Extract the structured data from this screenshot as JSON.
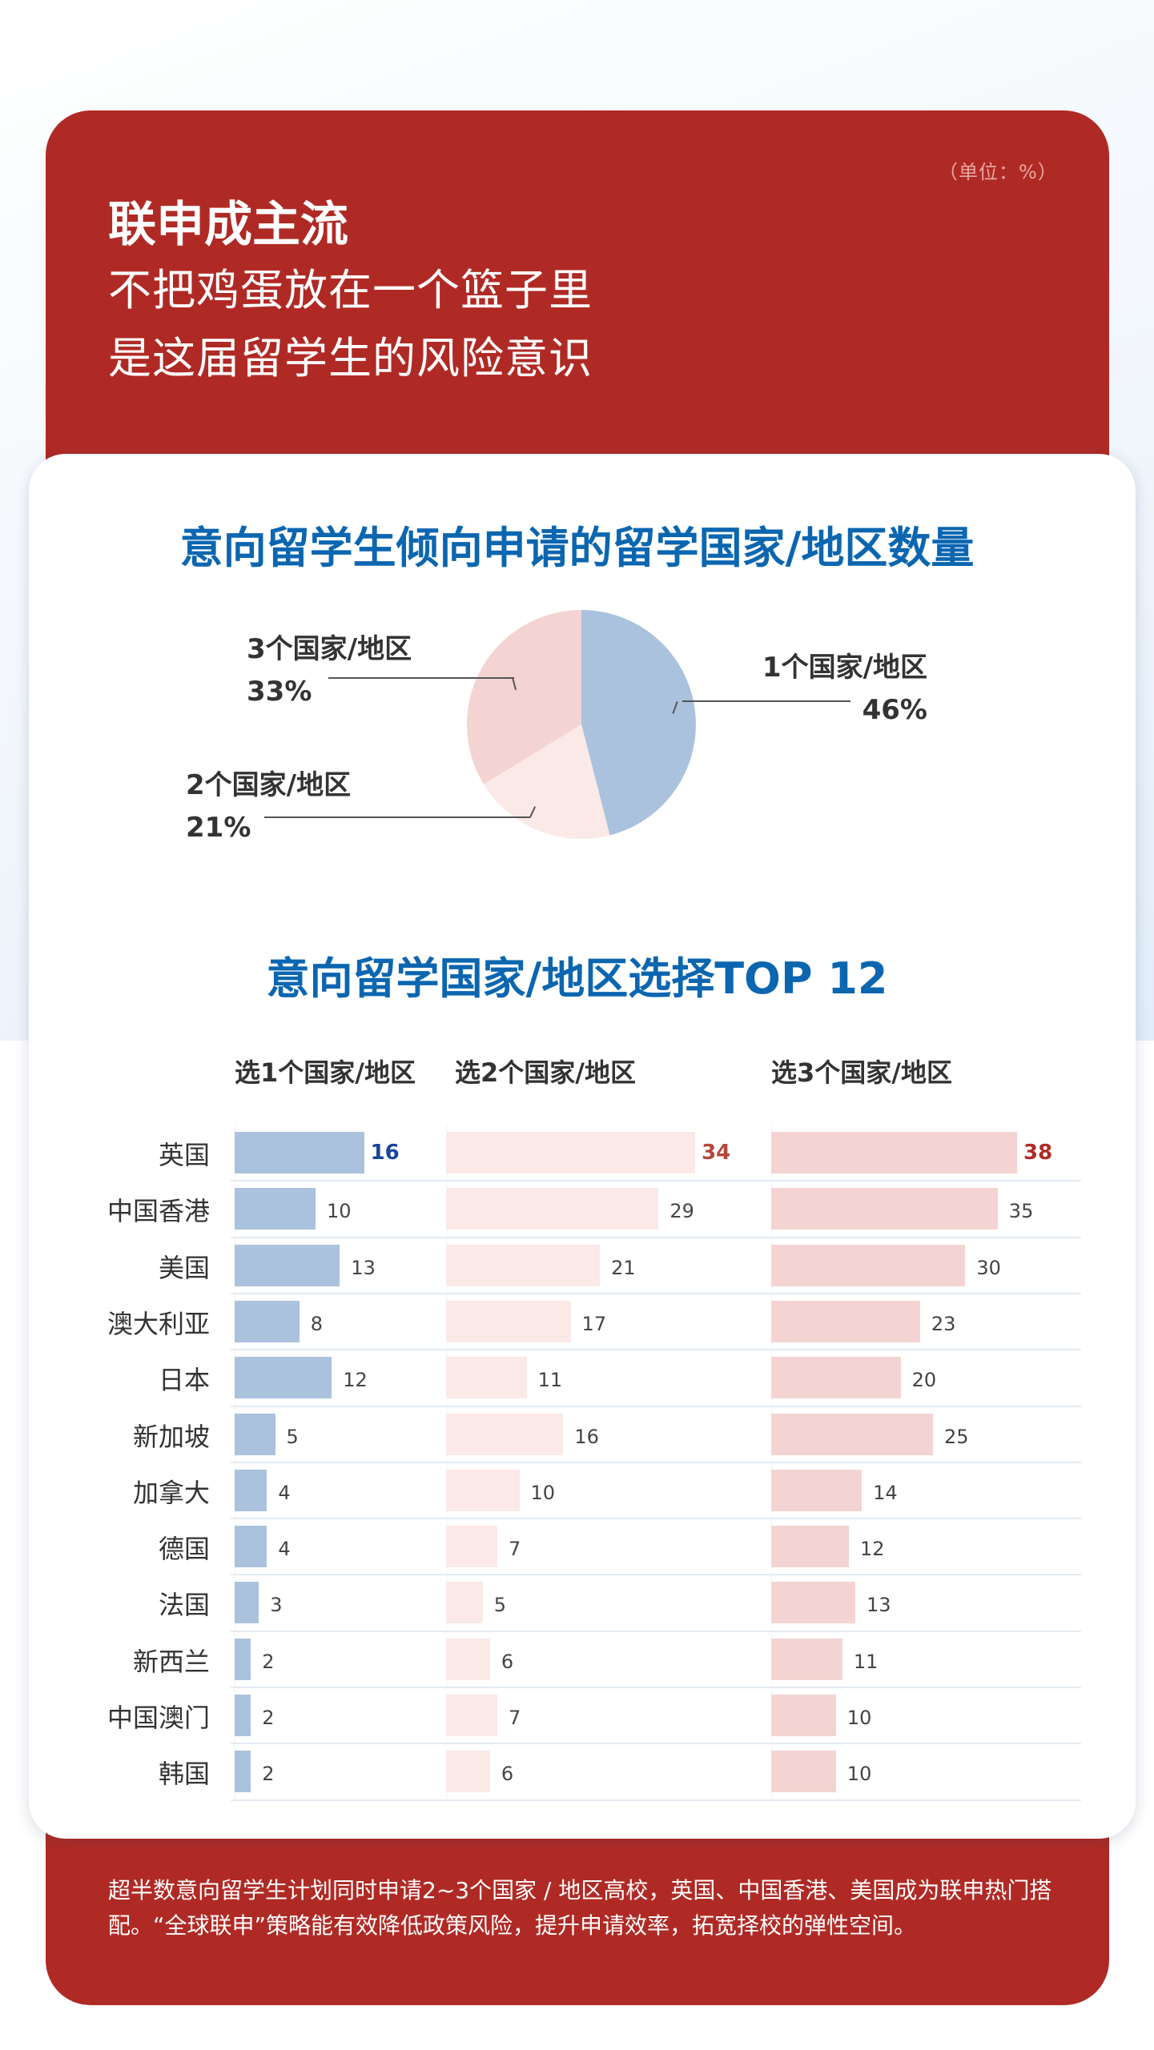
{
  "header": {
    "unit": "（单位：%）",
    "title": "联申成主流",
    "subtitle_line1": "不把鸡蛋放在一个篮子里",
    "subtitle_line2": "是这届留学生的风险意识"
  },
  "colors": {
    "brand_red": "#b02a25",
    "title_blue": "#0b66b0",
    "bar_one": "#aac2dd",
    "bar_two": "#fae9e7",
    "bar_three": "#f4d4d2"
  },
  "pie": {
    "title": "意向留学生倾向申请的留学国家/地区数量",
    "slices": [
      {
        "label": "1个国家/地区",
        "pct": "46%"
      },
      {
        "label": "2个国家/地区",
        "pct": "21%"
      },
      {
        "label": "3个国家/地区",
        "pct": "33%"
      }
    ]
  },
  "bars": {
    "title": "意向留学国家/地区选择TOP 12",
    "columns": [
      "选1个国家/地区",
      "选2个国家/地区",
      "选3个国家/地区"
    ],
    "rows": [
      {
        "name": "英国",
        "v": [
          "16",
          "34",
          "38"
        ]
      },
      {
        "name": "中国香港",
        "v": [
          "10",
          "29",
          "35"
        ]
      },
      {
        "name": "美国",
        "v": [
          "13",
          "21",
          "30"
        ]
      },
      {
        "name": "澳大利亚",
        "v": [
          "8",
          "17",
          "23"
        ]
      },
      {
        "name": "日本",
        "v": [
          "12",
          "11",
          "20"
        ]
      },
      {
        "name": "新加坡",
        "v": [
          "5",
          "16",
          "25"
        ]
      },
      {
        "name": "加拿大",
        "v": [
          "4",
          "10",
          "14"
        ]
      },
      {
        "name": "德国",
        "v": [
          "4",
          "7",
          "12"
        ]
      },
      {
        "name": "法国",
        "v": [
          "3",
          "5",
          "13"
        ]
      },
      {
        "name": "新西兰",
        "v": [
          "2",
          "6",
          "11"
        ]
      },
      {
        "name": "中国澳门",
        "v": [
          "2",
          "7",
          "10"
        ]
      },
      {
        "name": "韩国",
        "v": [
          "2",
          "6",
          "10"
        ]
      }
    ]
  },
  "footer": {
    "text": "超半数意向留学生计划同时申请2~3个国家 / 地区高校，英国、中国香港、美国成为联申热门搭配。“全球联申”策略能有效降低政策风险，提升申请效率，拓宽择校的弹性空间。"
  },
  "chart_data": [
    {
      "type": "pie",
      "title": "意向留学生倾向申请的留学国家/地区数量",
      "categories": [
        "1个国家/地区",
        "2个国家/地区",
        "3个国家/地区"
      ],
      "values": [
        46,
        21,
        33
      ],
      "unit": "%"
    },
    {
      "type": "bar",
      "title": "意向留学国家/地区选择TOP 12",
      "orientation": "horizontal",
      "unit": "%",
      "categories": [
        "英国",
        "中国香港",
        "美国",
        "澳大利亚",
        "日本",
        "新加坡",
        "加拿大",
        "德国",
        "法国",
        "新西兰",
        "中国澳门",
        "韩国"
      ],
      "series": [
        {
          "name": "选1个国家/地区",
          "values": [
            16,
            10,
            13,
            8,
            12,
            5,
            4,
            4,
            3,
            2,
            2,
            2
          ]
        },
        {
          "name": "选2个国家/地区",
          "values": [
            34,
            29,
            21,
            17,
            11,
            16,
            10,
            7,
            5,
            6,
            7,
            6
          ]
        },
        {
          "name": "选3个国家/地区",
          "values": [
            38,
            35,
            30,
            23,
            20,
            25,
            14,
            12,
            13,
            11,
            10,
            10
          ]
        }
      ]
    }
  ]
}
